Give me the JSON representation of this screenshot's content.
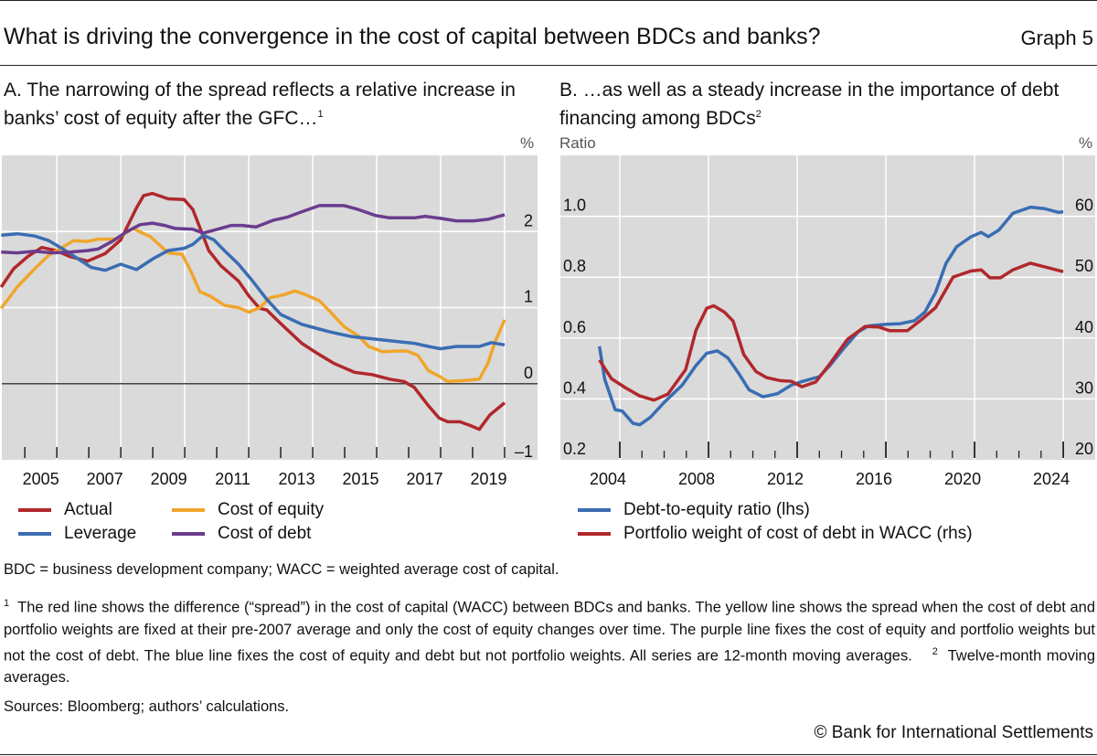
{
  "header": {
    "title": "What is driving the convergence in the cost of capital between BDCs and banks?",
    "graph_label": "Graph 5"
  },
  "colors": {
    "actual": "#b0282c",
    "cost_of_equity": "#f0a62c",
    "leverage": "#3a6db3",
    "cost_of_debt": "#6a3c8e",
    "plot_bg": "#dadada"
  },
  "chart_data": [
    {
      "panel": "A",
      "type": "line",
      "title": "A. The narrowing of the spread reflects a relative increase in banks’ cost of equity after the GFC…",
      "title_footnote": "1",
      "ylabel_right": "%",
      "ylim": [
        -1,
        3
      ],
      "yticks": [
        2,
        1,
        0,
        -1
      ],
      "ytick_labels": [
        "2",
        "1",
        "0",
        "–1"
      ],
      "xlim": [
        2004.28,
        2021.03
      ],
      "xtick_labels": [
        "2005",
        "2007",
        "2009",
        "2011",
        "2013",
        "2015",
        "2017",
        "2019"
      ],
      "grid": true,
      "legend_position": "bottom",
      "series": [
        {
          "name": "Actual",
          "color_key": "actual",
          "x": [
            2004.26,
            2004.65,
            2005.09,
            2005.53,
            2005.97,
            2006.41,
            2006.96,
            2007.51,
            2008.0,
            2008.49,
            2008.71,
            2008.99,
            2009.48,
            2009.98,
            2010.25,
            2010.75,
            2011.13,
            2011.68,
            2012.01,
            2012.34,
            2012.56,
            2013.0,
            2013.66,
            2014.1,
            2014.65,
            2015.31,
            2015.86,
            2016.41,
            2016.85,
            2017.18,
            2017.62,
            2017.95,
            2018.22,
            2018.6,
            2018.93,
            2019.21,
            2019.54,
            2020.0
          ],
          "y": [
            1.27,
            1.51,
            1.67,
            1.79,
            1.75,
            1.67,
            1.61,
            1.71,
            1.89,
            2.31,
            2.47,
            2.5,
            2.43,
            2.42,
            2.29,
            1.75,
            1.55,
            1.35,
            1.15,
            0.99,
            0.97,
            0.79,
            0.53,
            0.41,
            0.27,
            0.15,
            0.12,
            0.06,
            0.03,
            -0.05,
            -0.29,
            -0.45,
            -0.5,
            -0.5,
            -0.55,
            -0.6,
            -0.41,
            -0.25
          ]
        },
        {
          "name": "Cost of equity",
          "color_key": "cost_of_equity",
          "x": [
            2004.26,
            2004.76,
            2005.31,
            2005.75,
            2006.08,
            2006.52,
            2006.96,
            2007.29,
            2007.84,
            2008.38,
            2008.93,
            2009.48,
            2009.92,
            2010.2,
            2010.47,
            2010.8,
            2011.24,
            2011.68,
            2012.01,
            2012.34,
            2012.67,
            2013.11,
            2013.44,
            2013.77,
            2014.21,
            2014.54,
            2014.98,
            2015.42,
            2015.75,
            2016.19,
            2016.63,
            2016.96,
            2017.29,
            2017.62,
            2017.95,
            2018.22,
            2018.71,
            2019.21,
            2019.48,
            2019.7,
            2020.0
          ],
          "y": [
            0.99,
            1.27,
            1.51,
            1.69,
            1.77,
            1.88,
            1.87,
            1.9,
            1.9,
            2.04,
            1.93,
            1.72,
            1.7,
            1.47,
            1.21,
            1.15,
            1.03,
            1.0,
            0.94,
            1.0,
            1.13,
            1.17,
            1.22,
            1.17,
            1.09,
            0.95,
            0.75,
            0.63,
            0.49,
            0.42,
            0.43,
            0.43,
            0.37,
            0.17,
            0.1,
            0.03,
            0.04,
            0.06,
            0.27,
            0.55,
            0.84
          ]
        },
        {
          "name": "Leverage",
          "color_key": "leverage",
          "x": [
            2004.26,
            2004.76,
            2005.31,
            2005.75,
            2006.19,
            2006.63,
            2007.07,
            2007.51,
            2008.0,
            2008.49,
            2009.04,
            2009.48,
            2009.98,
            2010.25,
            2010.58,
            2010.91,
            2011.24,
            2011.68,
            2012.12,
            2012.56,
            2013.0,
            2013.66,
            2014.1,
            2014.54,
            2015.2,
            2015.86,
            2016.52,
            2017.18,
            2017.62,
            2018.0,
            2018.49,
            2019.21,
            2019.59,
            2020.0
          ],
          "y": [
            1.95,
            1.97,
            1.94,
            1.88,
            1.77,
            1.65,
            1.53,
            1.49,
            1.57,
            1.5,
            1.65,
            1.75,
            1.78,
            1.83,
            1.95,
            1.89,
            1.75,
            1.57,
            1.35,
            1.11,
            0.91,
            0.78,
            0.73,
            0.68,
            0.62,
            0.59,
            0.56,
            0.53,
            0.49,
            0.46,
            0.49,
            0.49,
            0.54,
            0.51
          ]
        },
        {
          "name": "Cost of debt",
          "color_key": "cost_of_debt",
          "x": [
            2004.26,
            2004.76,
            2005.31,
            2005.86,
            2006.41,
            2006.96,
            2007.29,
            2007.73,
            2008.16,
            2008.6,
            2008.99,
            2009.37,
            2009.7,
            2010.25,
            2010.58,
            2011.02,
            2011.46,
            2011.79,
            2012.23,
            2012.78,
            2013.22,
            2013.66,
            2014.21,
            2014.98,
            2015.42,
            2015.97,
            2016.41,
            2017.18,
            2017.51,
            2018.05,
            2018.49,
            2019.04,
            2019.48,
            2020.0
          ],
          "y": [
            1.73,
            1.72,
            1.74,
            1.72,
            1.73,
            1.75,
            1.77,
            1.87,
            1.99,
            2.09,
            2.11,
            2.08,
            2.04,
            2.03,
            1.98,
            2.03,
            2.08,
            2.08,
            2.06,
            2.15,
            2.19,
            2.26,
            2.34,
            2.34,
            2.29,
            2.21,
            2.18,
            2.18,
            2.2,
            2.17,
            2.14,
            2.14,
            2.16,
            2.22
          ]
        }
      ]
    },
    {
      "panel": "B",
      "type": "line",
      "title": "B. …as well as a steady increase in the importance of debt financing among BDCs",
      "title_footnote": "2",
      "ylabel_left": "Ratio",
      "ylabel_right": "%",
      "ylim_left": [
        0.2,
        1.2
      ],
      "ylim_right": [
        20,
        70
      ],
      "yticks_left": [
        "0.2",
        "0.4",
        "0.6",
        "0.8",
        "1.0"
      ],
      "yticks_right": [
        "20",
        "30",
        "40",
        "50",
        "60"
      ],
      "xlim": [
        2001.32,
        2025.44
      ],
      "xtick_labels": [
        "2004",
        "2008",
        "2012",
        "2016",
        "2020",
        "2024"
      ],
      "grid": true,
      "legend_position": "bottom",
      "series": [
        {
          "name": "Debt-to-equity ratio (lhs)",
          "axis": "left",
          "color_key": "leverage",
          "x": [
            2003.08,
            2003.32,
            2003.79,
            2004.11,
            2004.59,
            2004.9,
            2005.38,
            2006.02,
            2006.81,
            2007.44,
            2007.92,
            2008.4,
            2008.87,
            2009.35,
            2009.83,
            2010.46,
            2011.1,
            2011.73,
            2012.21,
            2013.0,
            2013.48,
            2014.11,
            2014.75,
            2015.22,
            2016.02,
            2016.65,
            2017.29,
            2017.76,
            2018.24,
            2018.71,
            2019.19,
            2019.83,
            2020.3,
            2020.62,
            2021.1,
            2021.73,
            2022.52,
            2023.16,
            2023.79,
            2024.0
          ],
          "y": [
            0.573,
            0.465,
            0.365,
            0.36,
            0.32,
            0.315,
            0.34,
            0.39,
            0.445,
            0.51,
            0.55,
            0.558,
            0.535,
            0.485,
            0.43,
            0.407,
            0.417,
            0.445,
            0.457,
            0.473,
            0.51,
            0.567,
            0.62,
            0.64,
            0.645,
            0.647,
            0.657,
            0.685,
            0.75,
            0.845,
            0.9,
            0.932,
            0.947,
            0.933,
            0.955,
            1.01,
            1.03,
            1.025,
            1.013,
            1.015
          ]
        },
        {
          "name": "Portfolio weight of cost of debt in WACC (rhs)",
          "axis": "right",
          "color_key": "actual",
          "x": [
            2003.08,
            2003.63,
            2004.27,
            2004.9,
            2005.54,
            2006.17,
            2006.97,
            2007.44,
            2007.92,
            2008.24,
            2008.71,
            2009.11,
            2009.59,
            2010.14,
            2010.62,
            2011.25,
            2011.73,
            2012.21,
            2012.84,
            2013.48,
            2014.27,
            2015.06,
            2015.7,
            2016.17,
            2016.97,
            2017.6,
            2018.24,
            2019.03,
            2019.83,
            2020.3,
            2020.7,
            2021.17,
            2021.73,
            2022.52,
            2023.16,
            2024.0
          ],
          "y": [
            36.4,
            33.3,
            31.8,
            30.5,
            29.8,
            30.8,
            34.8,
            41.3,
            44.9,
            45.3,
            44.3,
            42.8,
            37.3,
            34.5,
            33.5,
            33.0,
            32.9,
            32.0,
            32.8,
            35.8,
            39.8,
            41.9,
            41.8,
            41.2,
            41.2,
            43.0,
            45.0,
            50.0,
            51.0,
            51.2,
            49.9,
            49.9,
            51.2,
            52.3,
            51.7,
            50.9
          ]
        }
      ]
    }
  ],
  "notes": {
    "abbreviations": "BDC = business development company; WACC = weighted average cost of capital.",
    "footnote1_mark": "1",
    "footnote1": "The red line shows the difference (“spread”) in the cost of capital (WACC) between BDCs and banks. The yellow line shows the spread when the cost of debt and portfolio weights are fixed at their pre-2007 average and only the cost of equity changes over time. The purple line fixes the cost of equity and portfolio weights but not the cost of debt. The blue line fixes the cost of equity and debt but not portfolio weights. All series are 12-month moving averages.",
    "footnote2_mark": "2",
    "footnote2": "Twelve-month moving averages.",
    "sources": "Sources: Bloomberg; authors’ calculations.",
    "copyright": "© Bank for International Settlements"
  }
}
